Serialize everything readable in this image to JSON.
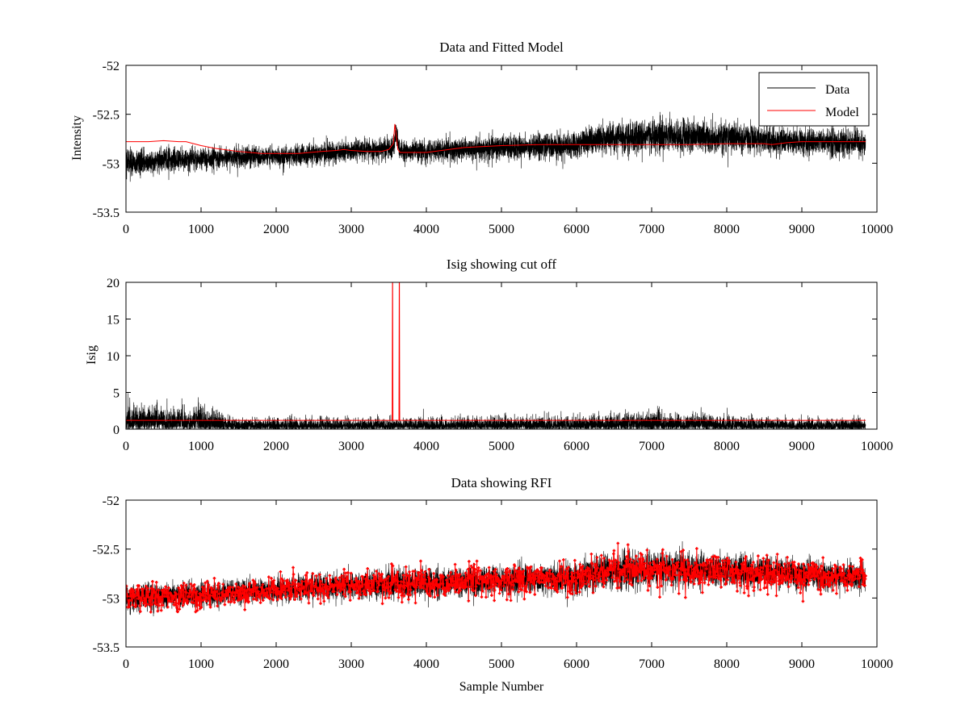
{
  "chart_data": [
    {
      "type": "line",
      "title": "Data and Fitted Model",
      "xlabel": "",
      "ylabel": "Intensity",
      "xlim": [
        0,
        10000
      ],
      "ylim": [
        -53.5,
        -52
      ],
      "xticks": [
        0,
        1000,
        2000,
        3000,
        4000,
        5000,
        6000,
        7000,
        8000,
        9000,
        10000
      ],
      "yticks": [
        -53.5,
        -53,
        -52.5,
        -52
      ],
      "xtick_labels": [
        "0",
        "1000",
        "2000",
        "3000",
        "4000",
        "5000",
        "6000",
        "7000",
        "8000",
        "9000",
        "10000"
      ],
      "ytick_labels": [
        "-53.5",
        "-53",
        "-52.5",
        "-52"
      ],
      "legend_position": "top-right",
      "series": [
        {
          "name": "Data",
          "color": "#000000",
          "style": "noise",
          "n_samples": 9850,
          "trend_x": [
            0,
            1000,
            2000,
            3000,
            3550,
            3600,
            3650,
            4000,
            5000,
            6000,
            6300,
            7000,
            8000,
            8500,
            9000,
            9850
          ],
          "trend_y": [
            -53.0,
            -52.95,
            -52.93,
            -52.88,
            -52.84,
            -52.7,
            -52.88,
            -52.88,
            -52.84,
            -52.82,
            -52.75,
            -52.72,
            -52.74,
            -52.76,
            -52.78,
            -52.8
          ],
          "noise_amplitude": [
            0.12,
            0.1,
            0.09,
            0.1,
            0.1,
            0.1,
            0.1,
            0.1,
            0.11,
            0.12,
            0.14,
            0.15,
            0.14,
            0.13,
            0.12,
            0.12
          ]
        },
        {
          "name": "Model",
          "color": "#ff0000",
          "style": "line",
          "x": [
            0,
            300,
            500,
            700,
            800,
            1000,
            1200,
            1500,
            1800,
            2000,
            2300,
            2600,
            2800,
            2900,
            3000,
            3200,
            3400,
            3500,
            3560,
            3580,
            3600,
            3620,
            3650,
            3700,
            4000,
            4500,
            5000,
            5500,
            6000,
            6500,
            7000,
            7500,
            8000,
            8500,
            8600,
            8800,
            9000,
            9500,
            9850
          ],
          "y": [
            -52.78,
            -52.78,
            -52.77,
            -52.78,
            -52.78,
            -52.82,
            -52.85,
            -52.88,
            -52.9,
            -52.9,
            -52.9,
            -52.88,
            -52.87,
            -52.86,
            -52.87,
            -52.88,
            -52.88,
            -52.86,
            -52.8,
            -52.6,
            -52.72,
            -52.86,
            -52.89,
            -52.89,
            -52.89,
            -52.84,
            -52.82,
            -52.81,
            -52.81,
            -52.81,
            -52.81,
            -52.81,
            -52.8,
            -52.8,
            -52.81,
            -52.79,
            -52.78,
            -52.78,
            -52.78
          ]
        }
      ]
    },
    {
      "type": "line",
      "title": "Isig showing cut off",
      "xlabel": "",
      "ylabel": "Isig",
      "xlim": [
        0,
        10000
      ],
      "ylim": [
        0,
        20
      ],
      "xticks": [
        0,
        1000,
        2000,
        3000,
        4000,
        5000,
        6000,
        7000,
        8000,
        9000,
        10000
      ],
      "yticks": [
        0,
        5,
        10,
        15,
        20
      ],
      "xtick_labels": [
        "0",
        "1000",
        "2000",
        "3000",
        "4000",
        "5000",
        "6000",
        "7000",
        "8000",
        "9000",
        "10000"
      ],
      "ytick_labels": [
        "0",
        "5",
        "10",
        "15",
        "20"
      ],
      "series": [
        {
          "name": "Isig",
          "color": "#000000",
          "style": "noise_positive",
          "n_samples": 9850,
          "envelope_x": [
            0,
            1000,
            1500,
            3000,
            6000,
            7000,
            8000,
            9000,
            9850
          ],
          "envelope_y": [
            2.0,
            1.9,
            0.9,
            0.9,
            1.1,
            1.4,
            1.1,
            0.9,
            0.9
          ]
        },
        {
          "name": "Cut off",
          "color": "#ff0000",
          "style": "line",
          "x": [
            0,
            3540,
            3545,
            3549,
            3551,
            3555,
            3630,
            3635,
            3639,
            3641,
            3645,
            9850
          ],
          "y": [
            1.2,
            1.2,
            1.2,
            20,
            20,
            1.2,
            1.2,
            1.2,
            20,
            20,
            1.2,
            1.2
          ]
        }
      ]
    },
    {
      "type": "scatter",
      "title": "Data showing RFI",
      "xlabel": "Sample Number",
      "ylabel": "",
      "xlim": [
        0,
        10000
      ],
      "ylim": [
        -53.5,
        -52
      ],
      "xticks": [
        0,
        1000,
        2000,
        3000,
        4000,
        5000,
        6000,
        7000,
        8000,
        9000,
        10000
      ],
      "yticks": [
        -53.5,
        -53,
        -52.5,
        -52
      ],
      "xtick_labels": [
        "0",
        "1000",
        "2000",
        "3000",
        "4000",
        "5000",
        "6000",
        "7000",
        "8000",
        "9000",
        "10000"
      ],
      "ytick_labels": [
        "-53.5",
        "-53",
        "-52.5",
        "-52"
      ],
      "series": [
        {
          "name": "Data",
          "color": "#000000",
          "style": "noise",
          "n_samples": 9850,
          "trend_x": [
            0,
            1000,
            2000,
            3000,
            4000,
            5000,
            6000,
            6300,
            7000,
            8000,
            9000,
            9850
          ],
          "trend_y": [
            -53.0,
            -52.97,
            -52.92,
            -52.87,
            -52.85,
            -52.82,
            -52.8,
            -52.73,
            -52.71,
            -52.72,
            -52.76,
            -52.78
          ],
          "noise_amplitude": [
            0.12,
            0.11,
            0.11,
            0.12,
            0.13,
            0.13,
            0.14,
            0.15,
            0.16,
            0.15,
            0.13,
            0.12
          ]
        },
        {
          "name": "RFI",
          "color": "#ff0000",
          "style": "markers",
          "n_points": 1700,
          "trend_x": [
            0,
            1000,
            2000,
            3000,
            4000,
            5000,
            6000,
            6300,
            7000,
            8000,
            9000,
            9850
          ],
          "trend_y": [
            -53.0,
            -52.97,
            -52.92,
            -52.87,
            -52.85,
            -52.82,
            -52.8,
            -52.73,
            -52.71,
            -52.72,
            -52.76,
            -52.78
          ],
          "noise_amplitude": [
            0.13,
            0.12,
            0.12,
            0.13,
            0.14,
            0.14,
            0.15,
            0.16,
            0.17,
            0.16,
            0.14,
            0.13
          ]
        }
      ]
    }
  ]
}
